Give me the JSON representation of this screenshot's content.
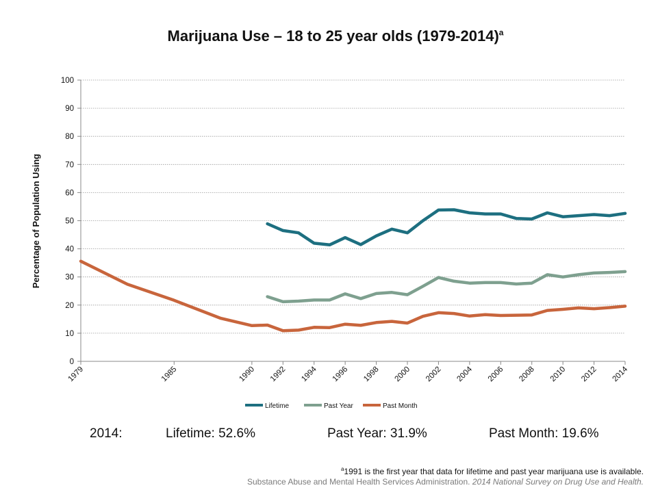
{
  "chart_data": {
    "type": "line",
    "title": "Marijuana Use – 18 to 25 year olds (1979-2014)",
    "title_superscript": "a",
    "ylabel": "Percentage of Population Using",
    "xlabel": "",
    "ylim": [
      0,
      100
    ],
    "yticks": [
      0,
      10,
      20,
      30,
      40,
      50,
      60,
      70,
      80,
      90,
      100
    ],
    "xticks": [
      1979,
      1985,
      1990,
      1992,
      1994,
      1996,
      1998,
      2000,
      2002,
      2004,
      2006,
      2008,
      2010,
      2012,
      2014
    ],
    "grid": "horizontal dotted",
    "legend_position": "bottom",
    "series": [
      {
        "name": "Lifetime",
        "color": "#1d6f80",
        "points": [
          [
            1991,
            48.9
          ],
          [
            1992,
            46.5
          ],
          [
            1993,
            45.7
          ],
          [
            1994,
            42.0
          ],
          [
            1995,
            41.4
          ],
          [
            1996,
            44.0
          ],
          [
            1997,
            41.5
          ],
          [
            1998,
            44.6
          ],
          [
            1999,
            47.0
          ],
          [
            2000,
            45.7
          ],
          [
            2001,
            50.0
          ],
          [
            2002,
            53.8
          ],
          [
            2003,
            53.9
          ],
          [
            2004,
            52.8
          ],
          [
            2005,
            52.4
          ],
          [
            2006,
            52.4
          ],
          [
            2007,
            50.8
          ],
          [
            2008,
            50.6
          ],
          [
            2009,
            52.8
          ],
          [
            2010,
            51.4
          ],
          [
            2011,
            51.8
          ],
          [
            2012,
            52.2
          ],
          [
            2013,
            51.8
          ],
          [
            2014,
            52.6
          ]
        ]
      },
      {
        "name": "Past Year",
        "color": "#7ea08f",
        "points": [
          [
            1991,
            23.0
          ],
          [
            1992,
            21.2
          ],
          [
            1993,
            21.4
          ],
          [
            1994,
            21.8
          ],
          [
            1995,
            21.8
          ],
          [
            1996,
            24.0
          ],
          [
            1997,
            22.3
          ],
          [
            1998,
            24.1
          ],
          [
            1999,
            24.5
          ],
          [
            2000,
            23.7
          ],
          [
            2001,
            26.7
          ],
          [
            2002,
            29.8
          ],
          [
            2003,
            28.5
          ],
          [
            2004,
            27.8
          ],
          [
            2005,
            28.0
          ],
          [
            2006,
            28.0
          ],
          [
            2007,
            27.5
          ],
          [
            2008,
            27.8
          ],
          [
            2009,
            30.8
          ],
          [
            2010,
            30.0
          ],
          [
            2011,
            30.8
          ],
          [
            2012,
            31.4
          ],
          [
            2013,
            31.6
          ],
          [
            2014,
            31.9
          ]
        ]
      },
      {
        "name": "Past Month",
        "color": "#c8653c",
        "points": [
          [
            1979,
            35.6
          ],
          [
            1982,
            27.4
          ],
          [
            1985,
            21.7
          ],
          [
            1988,
            15.3
          ],
          [
            1990,
            12.7
          ],
          [
            1991,
            12.9
          ],
          [
            1992,
            10.9
          ],
          [
            1993,
            11.1
          ],
          [
            1994,
            12.1
          ],
          [
            1995,
            12.0
          ],
          [
            1996,
            13.2
          ],
          [
            1997,
            12.8
          ],
          [
            1998,
            13.8
          ],
          [
            1999,
            14.2
          ],
          [
            2000,
            13.6
          ],
          [
            2001,
            16.0
          ],
          [
            2002,
            17.3
          ],
          [
            2003,
            17.0
          ],
          [
            2004,
            16.1
          ],
          [
            2005,
            16.6
          ],
          [
            2006,
            16.3
          ],
          [
            2007,
            16.4
          ],
          [
            2008,
            16.5
          ],
          [
            2009,
            18.1
          ],
          [
            2010,
            18.5
          ],
          [
            2011,
            19.0
          ],
          [
            2012,
            18.7
          ],
          [
            2013,
            19.1
          ],
          [
            2014,
            19.6
          ]
        ]
      }
    ]
  },
  "summary": {
    "year": "2014:",
    "lifetime": "Lifetime: 52.6%",
    "past_year": "Past Year: 31.9%",
    "past_month": "Past Month: 19.6%"
  },
  "footnote": {
    "marker": "a",
    "text": "1991 is the first year that data for lifetime and past year marijuana use is available."
  },
  "source": {
    "org": "Substance Abuse and Mental Health Services Administration.",
    "title": "2014 National Survey on Drug Use and Health."
  }
}
